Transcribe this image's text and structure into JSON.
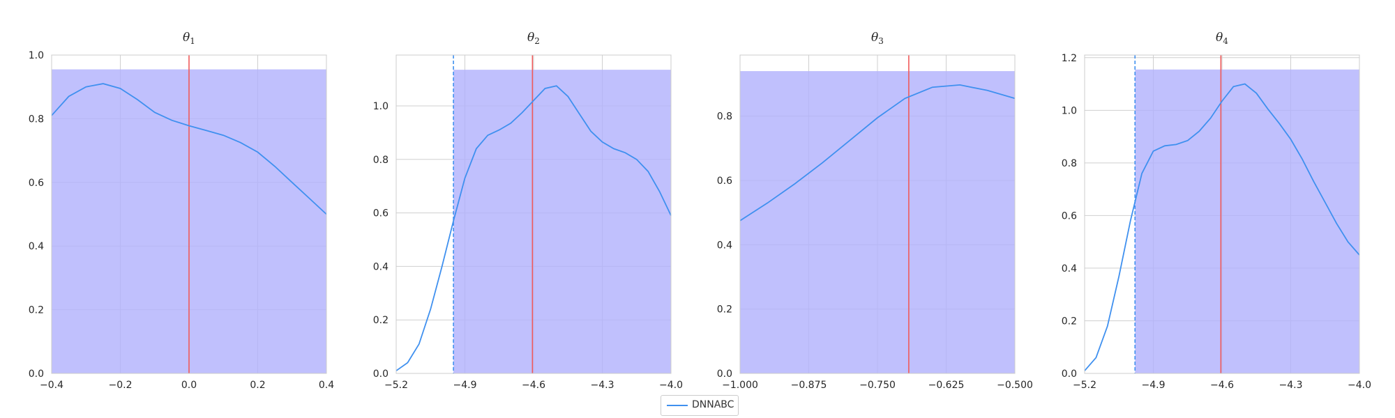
{
  "chart_data": [
    {
      "type": "line",
      "title_symbol": "θ",
      "title_sub": "1",
      "xlim": [
        -0.4,
        0.4
      ],
      "ylim": [
        0.0,
        1.0
      ],
      "xticks": [
        "−0.4",
        "−0.2",
        "0.0",
        "0.2",
        "0.4"
      ],
      "xtick_values": [
        -0.4,
        -0.2,
        0.0,
        0.2,
        0.4
      ],
      "yticks": [
        "0.0",
        "0.2",
        "0.4",
        "0.6",
        "0.8",
        "1.0"
      ],
      "ytick_values": [
        0.0,
        0.2,
        0.4,
        0.6,
        0.8,
        1.0
      ],
      "shaded_region": {
        "x": [
          -0.4,
          0.4
        ],
        "y_top": 0.955
      },
      "true_value": 0.0,
      "prior_bound": null,
      "series": [
        {
          "name": "DNNABC",
          "x": [
            -0.4,
            -0.35,
            -0.3,
            -0.25,
            -0.2,
            -0.15,
            -0.1,
            -0.05,
            0.0,
            0.05,
            0.1,
            0.15,
            0.2,
            0.25,
            0.3,
            0.35,
            0.4
          ],
          "y": [
            0.81,
            0.87,
            0.9,
            0.91,
            0.895,
            0.86,
            0.82,
            0.795,
            0.778,
            0.763,
            0.748,
            0.725,
            0.695,
            0.65,
            0.6,
            0.55,
            0.5
          ]
        }
      ]
    },
    {
      "type": "line",
      "title_symbol": "θ",
      "title_sub": "2",
      "xlim": [
        -5.2,
        -4.0
      ],
      "ylim": [
        0.0,
        1.19
      ],
      "xticks": [
        "−5.2",
        "−4.9",
        "−4.6",
        "−4.3",
        "−4.0"
      ],
      "xtick_values": [
        -5.2,
        -4.9,
        -4.6,
        -4.3,
        -4.0
      ],
      "yticks": [
        "0.0",
        "0.2",
        "0.4",
        "0.6",
        "0.8",
        "1.0"
      ],
      "ytick_values": [
        0.0,
        0.2,
        0.4,
        0.6,
        0.8,
        1.0
      ],
      "shaded_region": {
        "x": [
          -4.95,
          -4.0
        ],
        "y_top": 1.135
      },
      "true_value": -4.605,
      "prior_bound": -4.95,
      "series": [
        {
          "name": "DNNABC",
          "x": [
            -5.2,
            -5.15,
            -5.1,
            -5.05,
            -5.0,
            -4.95,
            -4.9,
            -4.85,
            -4.8,
            -4.75,
            -4.7,
            -4.65,
            -4.6,
            -4.55,
            -4.5,
            -4.45,
            -4.4,
            -4.35,
            -4.3,
            -4.25,
            -4.2,
            -4.15,
            -4.1,
            -4.05,
            -4.0
          ],
          "y": [
            0.01,
            0.04,
            0.11,
            0.24,
            0.4,
            0.57,
            0.73,
            0.84,
            0.89,
            0.91,
            0.935,
            0.975,
            1.02,
            1.065,
            1.075,
            1.035,
            0.97,
            0.905,
            0.865,
            0.84,
            0.825,
            0.8,
            0.755,
            0.68,
            0.59
          ]
        }
      ]
    },
    {
      "type": "line",
      "title_symbol": "θ",
      "title_sub": "3",
      "xlim": [
        -1.0,
        -0.5
      ],
      "ylim": [
        0.0,
        0.99
      ],
      "xticks": [
        "−1.000",
        "−0.875",
        "−0.750",
        "−0.625",
        "−0.500"
      ],
      "xtick_values": [
        -1.0,
        -0.875,
        -0.75,
        -0.625,
        -0.5
      ],
      "yticks": [
        "0.0",
        "0.2",
        "0.4",
        "0.6",
        "0.8"
      ],
      "ytick_values": [
        0.0,
        0.2,
        0.4,
        0.6,
        0.8
      ],
      "shaded_region": {
        "x": [
          -1.0,
          -0.5
        ],
        "y_top": 0.94
      },
      "true_value": -0.693,
      "prior_bound": null,
      "series": [
        {
          "name": "DNNABC",
          "x": [
            -1.0,
            -0.95,
            -0.9,
            -0.85,
            -0.8,
            -0.75,
            -0.7,
            -0.65,
            -0.6,
            -0.55,
            -0.5
          ],
          "y": [
            0.475,
            0.53,
            0.59,
            0.655,
            0.725,
            0.795,
            0.855,
            0.89,
            0.897,
            0.88,
            0.855
          ]
        }
      ]
    },
    {
      "type": "line",
      "title_symbol": "θ",
      "title_sub": "4",
      "xlim": [
        -5.2,
        -4.0
      ],
      "ylim": [
        0.0,
        1.21
      ],
      "xticks": [
        "−5.2",
        "−4.9",
        "−4.6",
        "−4.3",
        "−4.0"
      ],
      "xtick_values": [
        -5.2,
        -4.9,
        -4.6,
        -4.3,
        -4.0
      ],
      "yticks": [
        "0.0",
        "0.2",
        "0.4",
        "0.6",
        "0.8",
        "1.0",
        "1.2"
      ],
      "ytick_values": [
        0.0,
        0.2,
        0.4,
        0.6,
        0.8,
        1.0,
        1.2
      ],
      "shaded_region": {
        "x": [
          -4.98,
          -4.0
        ],
        "y_top": 1.155
      },
      "true_value": -4.605,
      "prior_bound": -4.98,
      "series": [
        {
          "name": "DNNABC",
          "x": [
            -5.2,
            -5.15,
            -5.1,
            -5.05,
            -5.0,
            -4.95,
            -4.9,
            -4.85,
            -4.8,
            -4.75,
            -4.7,
            -4.65,
            -4.6,
            -4.55,
            -4.5,
            -4.45,
            -4.4,
            -4.35,
            -4.3,
            -4.25,
            -4.2,
            -4.15,
            -4.1,
            -4.05,
            -4.0
          ],
          "y": [
            0.01,
            0.06,
            0.18,
            0.37,
            0.58,
            0.76,
            0.845,
            0.865,
            0.87,
            0.885,
            0.92,
            0.97,
            1.035,
            1.09,
            1.1,
            1.065,
            1.005,
            0.95,
            0.89,
            0.815,
            0.73,
            0.65,
            0.57,
            0.5,
            0.45
          ]
        }
      ]
    }
  ],
  "legend": {
    "label": "DNNABC",
    "color": "#3f90ef"
  },
  "colors": {
    "line": "#3f90ef",
    "shade": "#b0b0fc",
    "truth": "#f05a5a",
    "grid": "#cfcfcf",
    "spine": "#cccccc"
  }
}
